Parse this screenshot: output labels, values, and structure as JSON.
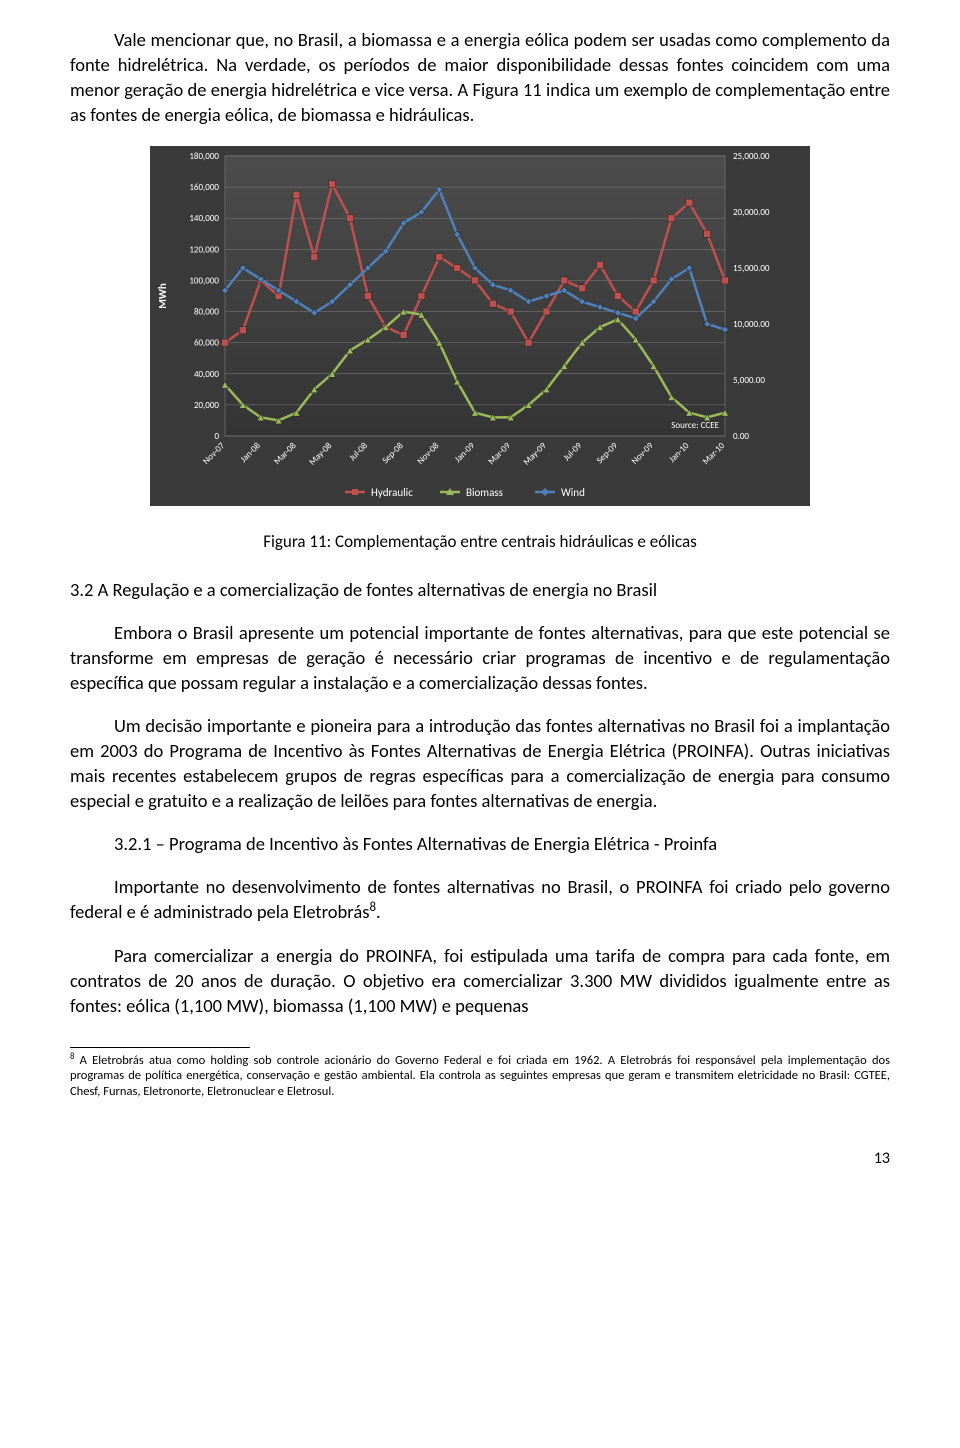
{
  "paragraphs": {
    "p1": "Vale mencionar que, no Brasil, a biomassa e a energia eólica podem ser usadas como complemento da fonte hidrelétrica. Na verdade, os períodos de maior disponibilidade dessas fontes coincidem com uma menor geração de energia hidrelétrica e vice versa. A Figura 11 indica um exemplo de complementação entre as fontes de energia eólica, de biomassa e hidráulicas.",
    "caption": "Figura 11: Complementação entre centrais hidráulicas e eólicas",
    "section_3_2": "3.2  A Regulação e a comercialização de fontes alternativas de energia no Brasil",
    "p_embora": "Embora o Brasil apresente um potencial importante de fontes alternativas, para que este potencial se transforme em empresas de geração é necessário criar programas de incentivo e de regulamentação específica que possam regular a instalação e a comercialização dessas fontes.",
    "p_decisao": "Um decisão importante e pioneira para a introdução das fontes alternativas no Brasil foi a implantação em 2003 do Programa de Incentivo às Fontes Alternativas de Energia Elétrica (PROINFA). Outras iniciativas mais recentes estabelecem grupos de regras específicas para a comercialização de energia para consumo especial e gratuito e a realização de leilões para fontes alternativas de energia.",
    "section_3_2_1": "3.2.1 – Programa de Incentivo às Fontes Alternativas de Energia Elétrica - Proinfa",
    "p_importante_a": "Importante no desenvolvimento de fontes alternativas no Brasil, o PROINFA foi criado pelo governo federal e é administrado pela Eletrobrás",
    "p_importante_sup": "8",
    "p_importante_b": ".",
    "p_comercializar": "Para comercializar a energia do PROINFA, foi estipulada uma tarifa de compra para cada fonte, em contratos de 20 anos de duração. O objetivo era comercializar 3.300 MW divididos igualmente entre as fontes: eólica (1,100 MW), biomassa (1,100 MW) e pequenas",
    "footnote_sup": "8",
    "footnote": " A Eletrobrás atua como holding sob controle acionário do Governo Federal e foi criada em 1962.  A Eletrobrás foi responsável pela implementação dos programas de política energética, conservação e gestão ambiental.  Ela controla as seguintes empresas que geram e transmitem eletricidade no Brasil: CGTEE, Chesf, Furnas, Eletronorte, Eletronuclear e Eletrosul.",
    "page_number": "13"
  },
  "chart": {
    "type": "line",
    "background_color": "#3a3a3a",
    "plot_bg_gradient_top": "#4c4c4c",
    "plot_bg_gradient_bottom": "#343434",
    "grid_color": "#808080",
    "axis_text_color": "#ffffff",
    "y_axis_label": "MWh",
    "y_axis_label_fontsize": 11,
    "tick_fontsize": 9,
    "source_text": "Source: CCEE",
    "source_fontsize": 9,
    "source_color": "#ffffff",
    "y_left": {
      "min": 0,
      "max": 180000,
      "step": 20000,
      "labels": [
        "0",
        "20,000",
        "40,000",
        "60,000",
        "80,000",
        "100,000",
        "120,000",
        "140,000",
        "160,000",
        "180,000"
      ]
    },
    "y_right": {
      "min": 0,
      "max": 25000,
      "step": 5000,
      "labels": [
        "0.00",
        "5,000.00",
        "10,000.00",
        "15,000.00",
        "20,000.00",
        "25,000.00"
      ]
    },
    "x_categories": [
      "Nov-07",
      "Jan-08",
      "Mar-08",
      "May-08",
      "Jul-08",
      "Sep-08",
      "Nov-08",
      "Jan-09",
      "Mar-09",
      "May-09",
      "Jul-09",
      "Sep-09",
      "Nov-09",
      "Jan-10",
      "Mar-10"
    ],
    "series": [
      {
        "name": "Hydraulic",
        "color": "#c0504d",
        "marker": "square",
        "line_width": 2.5,
        "axis": "left",
        "values": [
          60000,
          68000,
          100000,
          90000,
          155000,
          115000,
          162000,
          140000,
          90000,
          70000,
          65000,
          90000,
          115000,
          108000,
          100000,
          85000,
          80000,
          60000,
          80000,
          100000,
          95000,
          110000,
          90000,
          80000,
          100000,
          140000,
          150000,
          130000,
          100000
        ]
      },
      {
        "name": "Biomass",
        "color": "#9bbb59",
        "marker": "triangle",
        "line_width": 2.5,
        "axis": "left",
        "values": [
          33000,
          20000,
          12000,
          10000,
          15000,
          30000,
          40000,
          55000,
          62000,
          70000,
          80000,
          78000,
          60000,
          35000,
          15000,
          12000,
          12000,
          20000,
          30000,
          45000,
          60000,
          70000,
          75000,
          62000,
          45000,
          25000,
          15000,
          12000,
          15000
        ]
      },
      {
        "name": "Wind",
        "color": "#4f81bd",
        "marker": "diamond",
        "line_width": 2.5,
        "axis": "right",
        "values": [
          13000,
          15000,
          14000,
          13000,
          12000,
          11000,
          12000,
          13500,
          15000,
          16500,
          19000,
          20000,
          22000,
          18000,
          15000,
          13500,
          13000,
          12000,
          12500,
          13000,
          12000,
          11500,
          11000,
          10500,
          12000,
          14000,
          15000,
          10000,
          9500
        ]
      }
    ],
    "legend": {
      "items": [
        "Hydraulic",
        "Biomass",
        "Wind"
      ],
      "colors": [
        "#c0504d",
        "#9bbb59",
        "#4f81bd"
      ],
      "text_color": "#ffffff",
      "fontsize": 11
    }
  }
}
